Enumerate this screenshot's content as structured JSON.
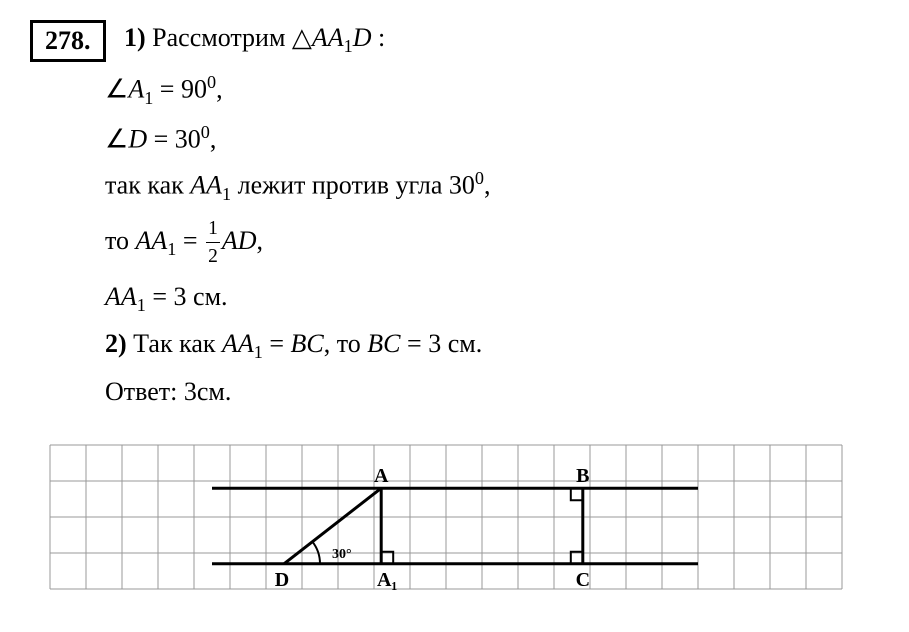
{
  "problem_number": "278.",
  "lines": {
    "line1_bold": "1)",
    "line1_text": " Рассмотрим △",
    "line1_math": "AA",
    "line1_sub": "1",
    "line1_math2": "D",
    "line1_end": " :",
    "line2_pre": "∠",
    "line2_math": "A",
    "line2_sub": "1",
    "line2_eq": " = 90",
    "line2_sup": "0",
    "line2_end": ",",
    "line3_pre": "∠",
    "line3_math": "D",
    "line3_eq": " = 30",
    "line3_sup": "0",
    "line3_end": ",",
    "line4_text": "так как ",
    "line4_math": "AA",
    "line4_sub": "1",
    "line4_text2": " лежит против угла 30",
    "line4_sup": "0",
    "line4_end": ",",
    "line5_text": "то ",
    "line5_math": "AA",
    "line5_sub": "1",
    "line5_eq": " = ",
    "line5_frac_num": "1",
    "line5_frac_den": "2",
    "line5_math2": "AD",
    "line5_end": ",",
    "line6_math": "AA",
    "line6_sub": "1",
    "line6_eq": " = 3 см.",
    "line7_bold": "2)",
    "line7_text": " Так как ",
    "line7_math": "AA",
    "line7_sub": "1",
    "line7_eq": " = ",
    "line7_math2": "BC",
    "line7_text2": ", то ",
    "line7_math3": "BC",
    "line7_eq2": " = 3 см.",
    "line8_text": "Ответ: 3см."
  },
  "diagram": {
    "grid_color": "#999999",
    "grid_stroke": 1,
    "main_stroke_color": "#000000",
    "main_stroke_width": 3,
    "labels": {
      "A": "A",
      "B": "B",
      "C": "C",
      "D": "D",
      "A1": "A₁",
      "angle": "30°"
    },
    "label_fontsize": 20,
    "angle_fontsize": 14,
    "cell_size": 36,
    "cols": 22,
    "rows": 4,
    "points": {
      "D": {
        "x": 6.5,
        "y": 3.3
      },
      "A1": {
        "x": 9.2,
        "y": 3.3
      },
      "A": {
        "x": 9.2,
        "y": 1.2
      },
      "B": {
        "x": 14.8,
        "y": 1.2
      },
      "C": {
        "x": 14.8,
        "y": 3.3
      }
    }
  }
}
